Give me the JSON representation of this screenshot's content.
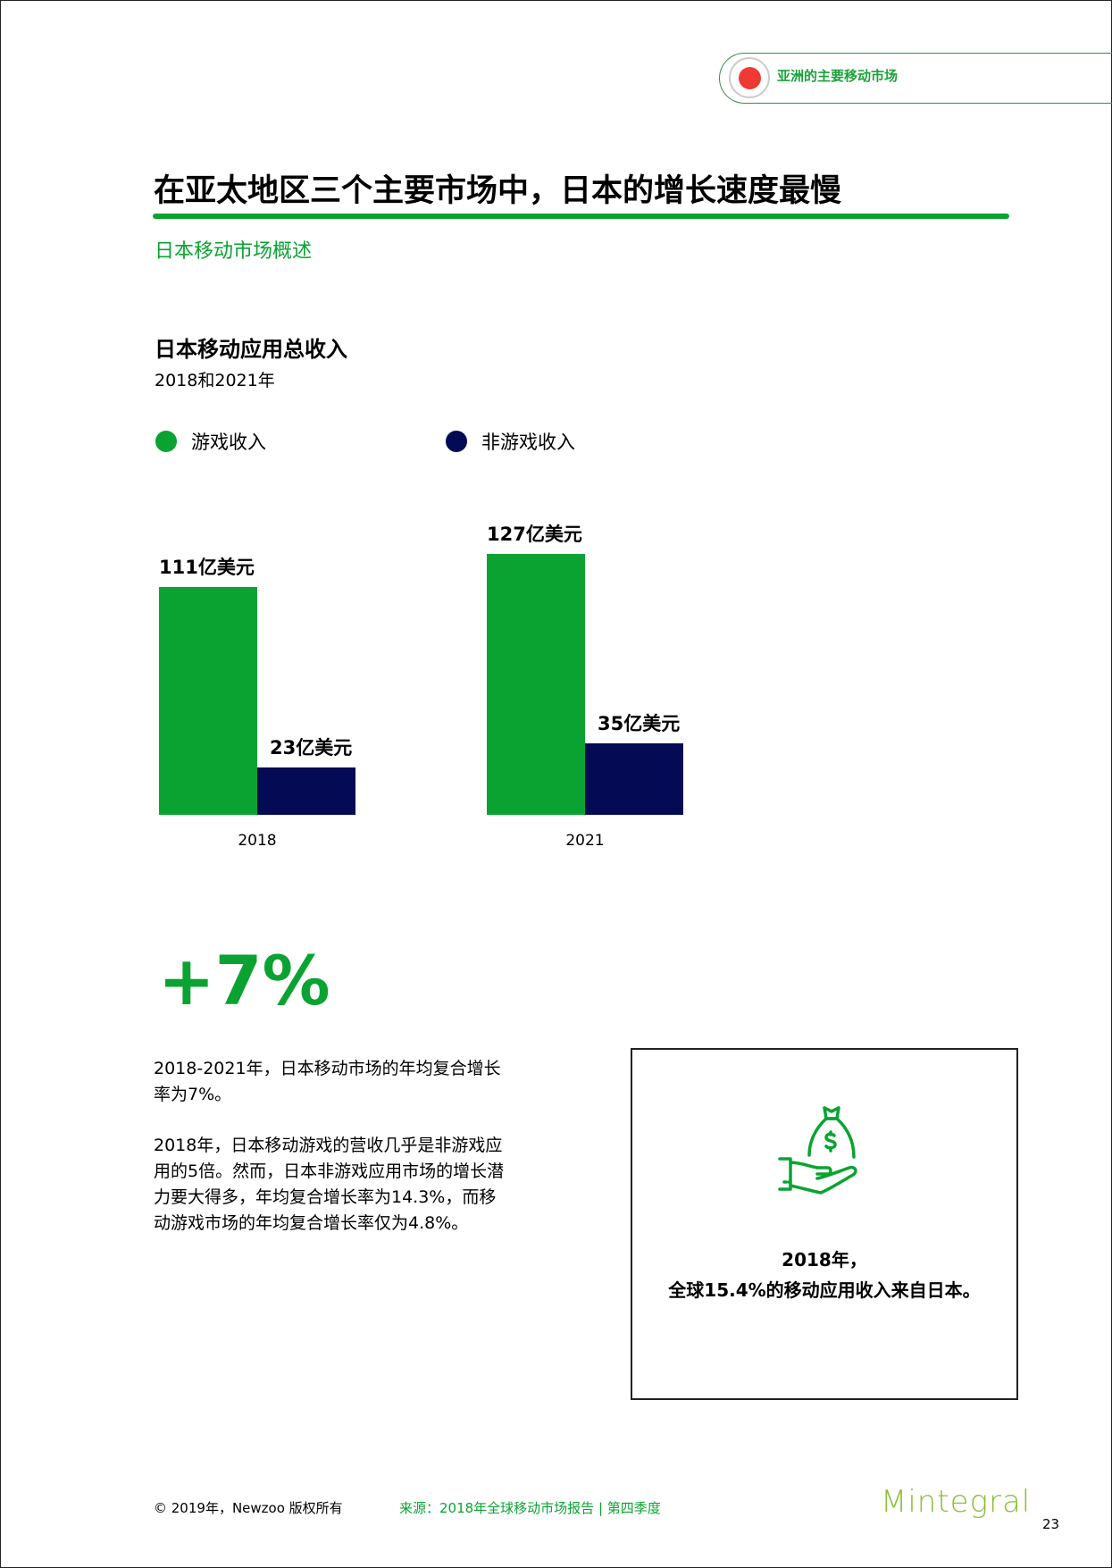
{
  "header": {
    "section_label": "亚洲的主要移动市场",
    "title": "在亚太地区三个主要市场中，日本的增长速度最慢",
    "subtitle": "日本移动市场概述"
  },
  "colors": {
    "accent": "#0aa332",
    "games": "#0aa332",
    "non_games": "#050a55",
    "marker": "#ee3a33"
  },
  "chart_data": {
    "type": "bar",
    "title": "日本移动应用总收入",
    "subtitle": "2018和2021年",
    "categories": [
      "2018",
      "2021"
    ],
    "series": [
      {
        "name": "游戏收入",
        "values": [
          111,
          127
        ],
        "labels": [
          "111亿美元",
          "127亿美元"
        ]
      },
      {
        "name": "非游戏收入",
        "values": [
          23,
          35
        ],
        "labels": [
          "23亿美元",
          "35亿美元"
        ]
      }
    ],
    "unit": "亿美元",
    "legend": "top",
    "grid": false
  },
  "highlight": {
    "value": "+7%",
    "paragraphs": [
      [
        "2018-2021年，日本移动市场的年均复合增长",
        "率为7%。"
      ],
      [
        "2018年，日本移动游戏的营收几乎是非游戏应",
        "用的5倍。然而，日本非游戏应用市场的增长潜",
        "力要大得多，年均复合增长率为14.3%，而移",
        "动游戏市场的年均复合增长率仅为4.8%。"
      ]
    ]
  },
  "callout": {
    "icon": "money-bag-hand-icon",
    "lines": [
      "2018年，",
      "全球15.4%的移动应用收入来自日本。"
    ]
  },
  "footer": {
    "copyright": "© 2019年，Newzoo 版权所有",
    "source": "来源：2018年全球移动市场报告 | 第四季度",
    "logo": "Mintegral",
    "page": "23"
  }
}
